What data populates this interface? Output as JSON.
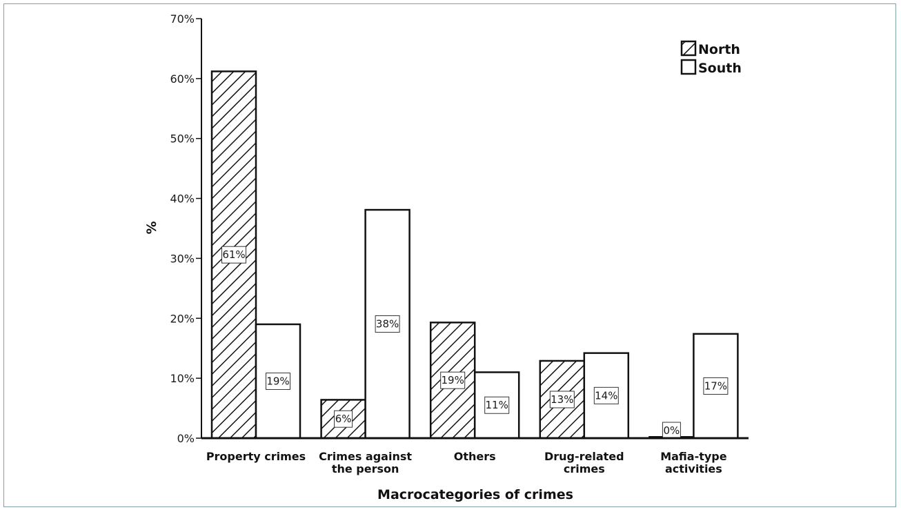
{
  "chart_data": {
    "type": "bar",
    "title": "",
    "xlabel": "Macrocategories of crimes",
    "ylabel": "%",
    "ylim": [
      0,
      70
    ],
    "yticks": [
      "0%",
      "10%",
      "20%",
      "30%",
      "40%",
      "50%",
      "60%",
      "70%"
    ],
    "ytick_values": [
      0,
      10,
      20,
      30,
      40,
      50,
      60,
      70
    ],
    "categories": [
      [
        "Property crimes"
      ],
      [
        "Crimes against",
        "the person"
      ],
      [
        "Others"
      ],
      [
        "Drug-related",
        "crimes"
      ],
      [
        "Mafia-type",
        "activities"
      ]
    ],
    "series": [
      {
        "name": "North",
        "pattern": "hatched",
        "values": [
          61.2,
          6.4,
          19.3,
          12.9,
          0.2
        ],
        "labels": [
          "61%",
          "6%",
          "19%",
          "13%",
          "0%"
        ]
      },
      {
        "name": "South",
        "pattern": "plain",
        "values": [
          19.0,
          38.1,
          11.0,
          14.2,
          17.4
        ],
        "labels": [
          "19%",
          "38%",
          "11%",
          "14%",
          "17%"
        ]
      }
    ],
    "legend": "top-right",
    "grid": false,
    "colors": {
      "bar_stroke": "#111111",
      "bar_fill": "#ffffff",
      "hatch": "#111111"
    }
  }
}
